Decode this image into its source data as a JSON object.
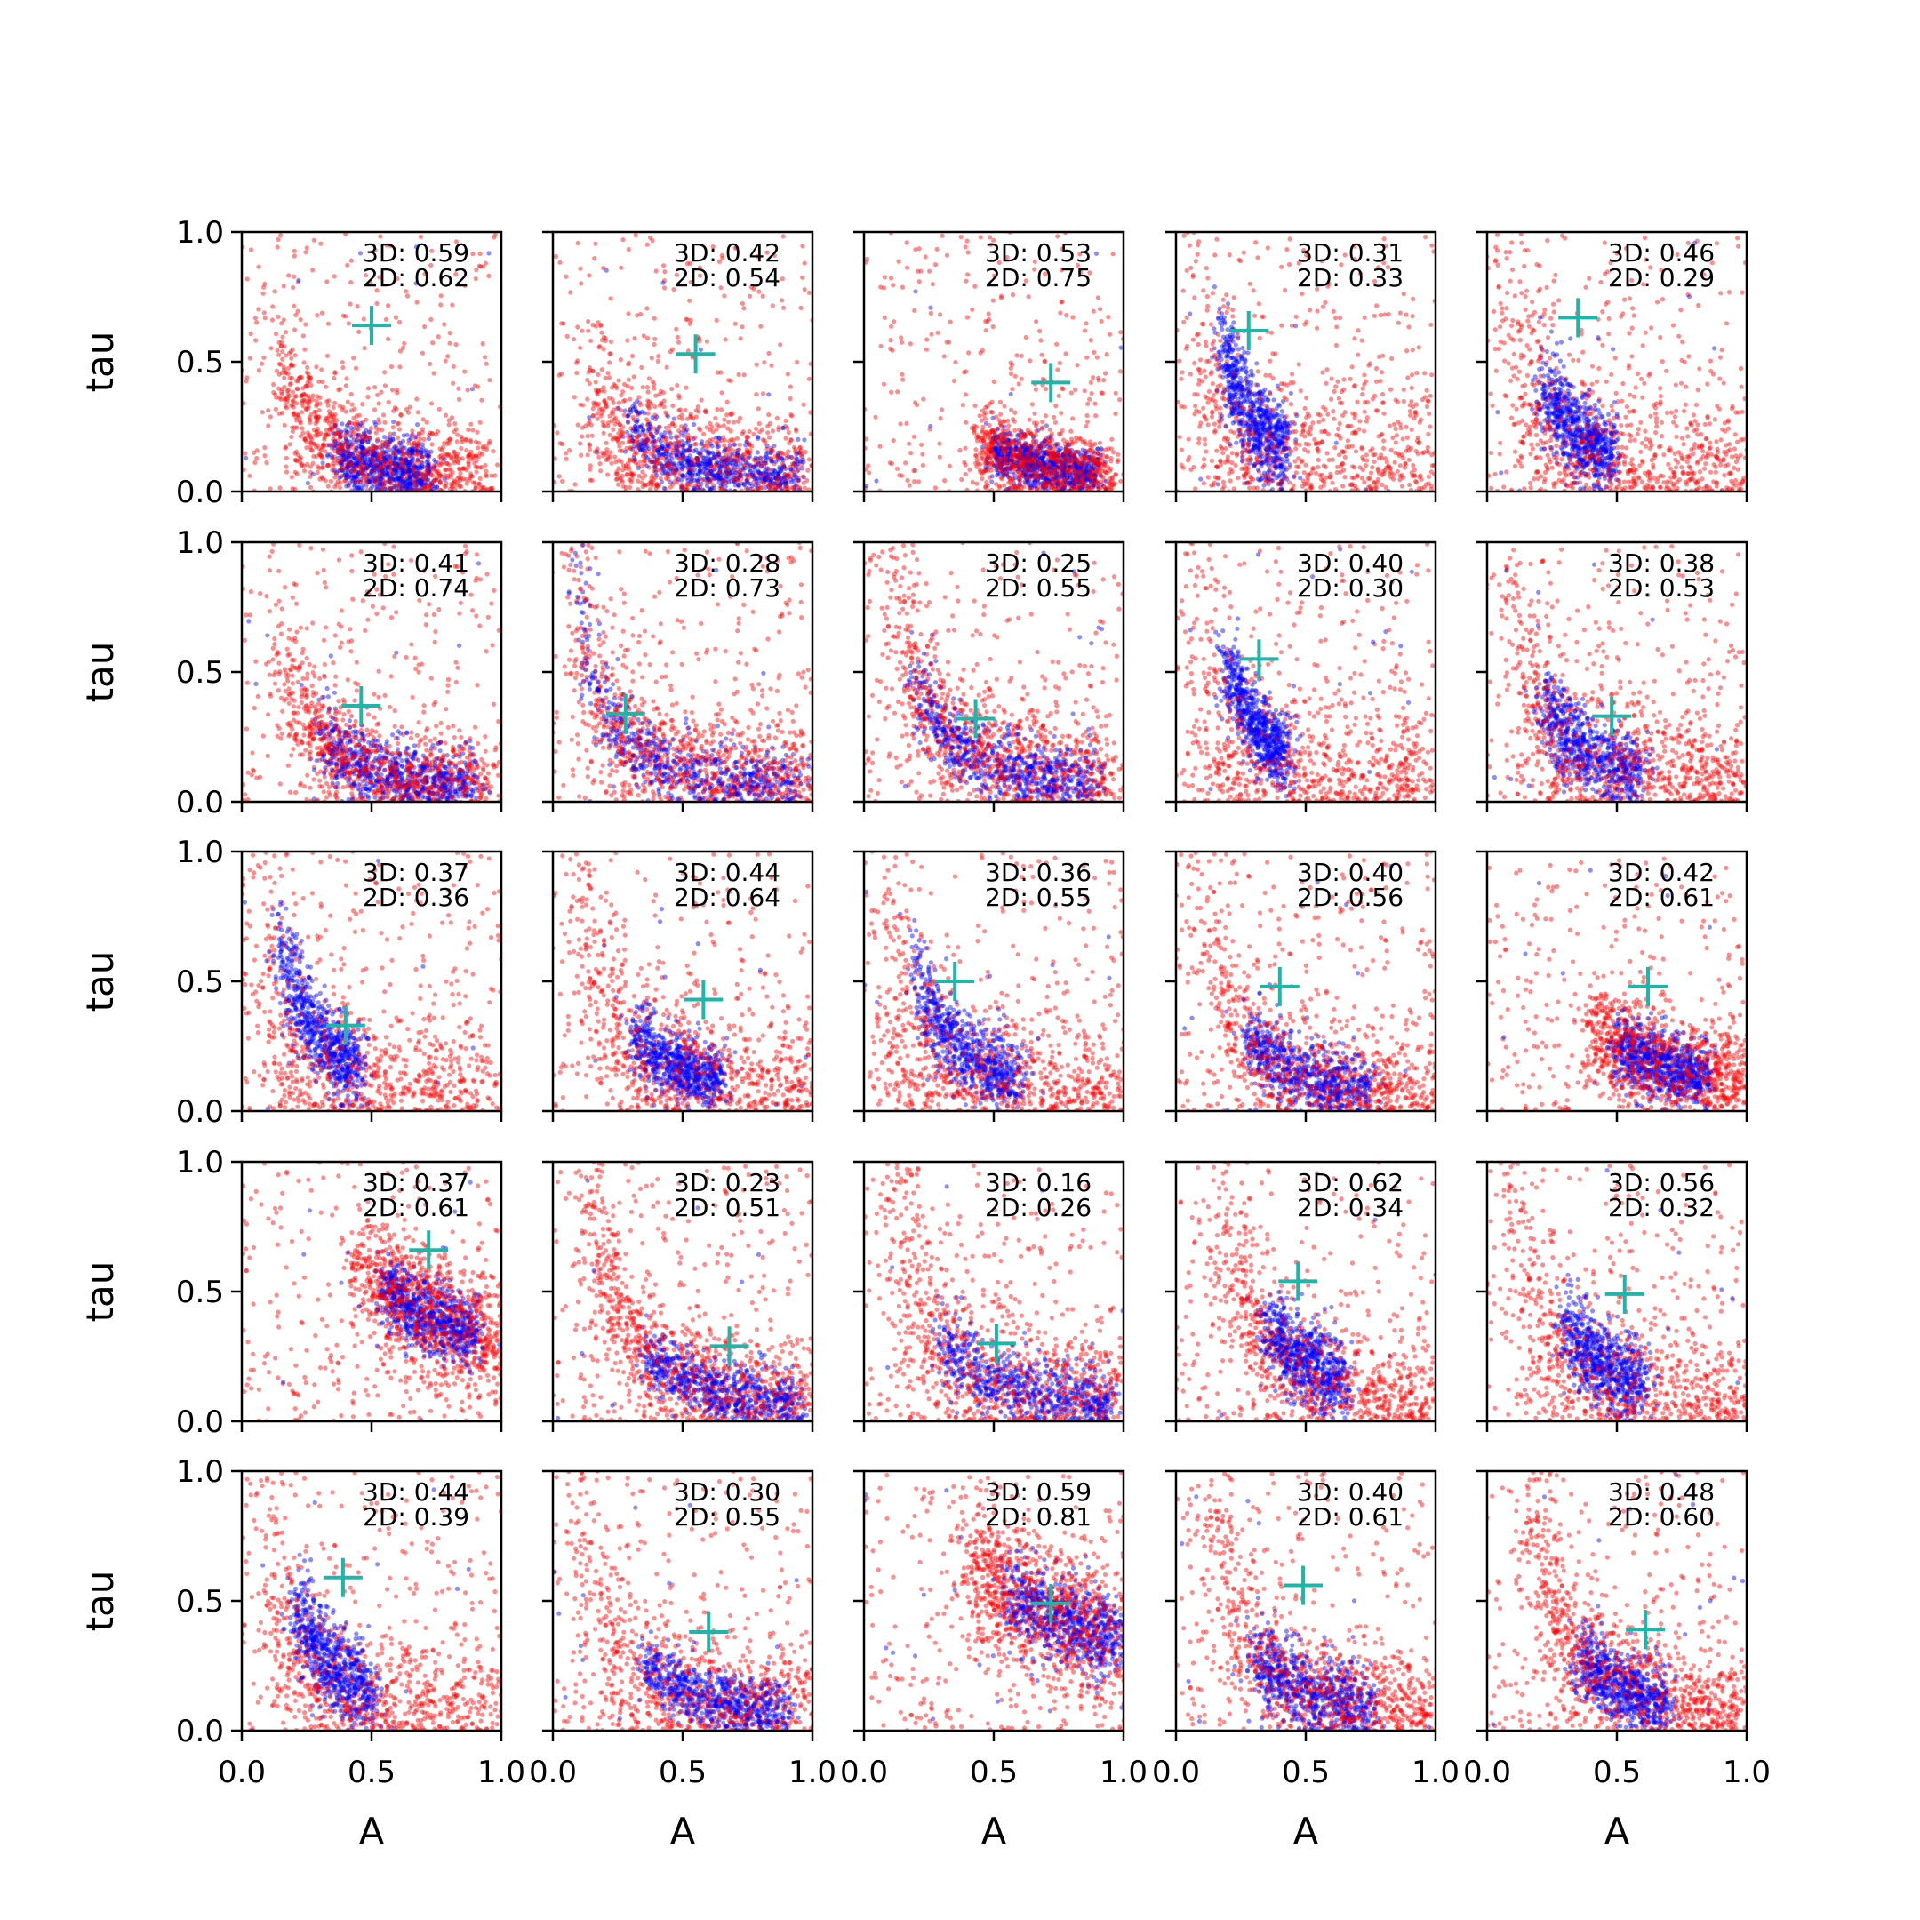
{
  "chart_data": {
    "type": "scatter",
    "rows": 5,
    "cols": 5,
    "xlabel": "A",
    "ylabel": "tau",
    "xlim": [
      0.0,
      1.0
    ],
    "ylim": [
      0.0,
      1.0
    ],
    "xticks": [
      "0.0",
      "0.5",
      "1.0"
    ],
    "yticks": [
      "0.0",
      "0.5",
      "1.0"
    ],
    "grid": false,
    "series_colors": {
      "posterior_2d": "#ff0000",
      "posterior_3d": "#0000ff",
      "truth_marker": "#1fb5a8"
    },
    "panels": [
      {
        "score_3d": "3D: 0.59",
        "score_2d": "2D: 0.62",
        "truth": [
          0.5,
          0.64
        ],
        "red": {
          "a": 0.04,
          "b": 1.4,
          "w": 0.1,
          "x": [
            0.15,
            0.95
          ]
        },
        "blue": {
          "a": 0.04,
          "b": 1.4,
          "w": 0.07,
          "x": [
            0.38,
            0.72
          ]
        }
      },
      {
        "score_3d": "3D: 0.42",
        "score_2d": "2D: 0.54",
        "truth": [
          0.55,
          0.53
        ],
        "red": {
          "a": 0.03,
          "b": 1.45,
          "w": 0.13,
          "x": [
            0.15,
            1.0
          ]
        },
        "blue": {
          "a": 0.045,
          "b": 1.45,
          "w": 0.06,
          "x": [
            0.3,
            0.95
          ]
        }
      },
      {
        "score_3d": "3D: 0.53",
        "score_2d": "2D: 0.75",
        "truth": [
          0.72,
          0.42
        ],
        "red": {
          "a": 0.06,
          "b": 1.4,
          "w": 0.07,
          "x": [
            0.45,
            0.95
          ]
        },
        "blue": {
          "a": 0.06,
          "b": 1.4,
          "w": 0.05,
          "x": [
            0.5,
            0.9
          ]
        }
      },
      {
        "score_3d": "3D: 0.31",
        "score_2d": "2D: 0.33",
        "truth": [
          0.28,
          0.62
        ],
        "red": {
          "a": 0.01,
          "b": 1.8,
          "w": 0.2,
          "x": [
            0.02,
            1.0
          ]
        },
        "blue": {
          "a": 0.04,
          "b": 1.6,
          "w": 0.08,
          "x": [
            0.18,
            0.42
          ]
        }
      },
      {
        "score_3d": "3D: 0.46",
        "score_2d": "2D: 0.29",
        "truth": [
          0.35,
          0.67
        ],
        "red": {
          "a": 0.02,
          "b": 1.6,
          "w": 0.15,
          "x": [
            0.02,
            1.0
          ]
        },
        "blue": {
          "a": 0.05,
          "b": 1.4,
          "w": 0.08,
          "x": [
            0.22,
            0.48
          ]
        }
      },
      {
        "score_3d": "3D: 0.41",
        "score_2d": "2D: 0.74",
        "truth": [
          0.46,
          0.37
        ],
        "red": {
          "a": 0.04,
          "b": 1.5,
          "w": 0.1,
          "x": [
            0.15,
            0.95
          ]
        },
        "blue": {
          "a": 0.05,
          "b": 1.4,
          "w": 0.07,
          "x": [
            0.3,
            0.9
          ]
        }
      },
      {
        "score_3d": "3D: 0.28",
        "score_2d": "2D: 0.73",
        "truth": [
          0.28,
          0.34
        ],
        "red": {
          "a": 0.05,
          "b": 1.2,
          "w": 0.12,
          "x": [
            0.02,
            1.0
          ]
        },
        "blue": {
          "a": 0.05,
          "b": 1.2,
          "w": 0.07,
          "x": [
            0.03,
            0.95
          ]
        }
      },
      {
        "score_3d": "3D: 0.25",
        "score_2d": "2D: 0.55",
        "truth": [
          0.43,
          0.32
        ],
        "red": {
          "a": 0.06,
          "b": 1.3,
          "w": 0.12,
          "x": [
            0.05,
            0.95
          ]
        },
        "blue": {
          "a": 0.06,
          "b": 1.3,
          "w": 0.07,
          "x": [
            0.2,
            0.9
          ]
        }
      },
      {
        "score_3d": "3D: 0.40",
        "score_2d": "2D: 0.30",
        "truth": [
          0.32,
          0.55
        ],
        "red": {
          "a": 0.01,
          "b": 1.8,
          "w": 0.18,
          "x": [
            0.02,
            1.0
          ]
        },
        "blue": {
          "a": 0.05,
          "b": 1.5,
          "w": 0.07,
          "x": [
            0.2,
            0.42
          ]
        }
      },
      {
        "score_3d": "3D: 0.38",
        "score_2d": "2D: 0.53",
        "truth": [
          0.48,
          0.33
        ],
        "red": {
          "a": 0.03,
          "b": 1.5,
          "w": 0.15,
          "x": [
            0.05,
            1.0
          ]
        },
        "blue": {
          "a": 0.05,
          "b": 1.4,
          "w": 0.08,
          "x": [
            0.22,
            0.6
          ]
        }
      },
      {
        "score_3d": "3D: 0.37",
        "score_2d": "2D: 0.36",
        "truth": [
          0.4,
          0.33
        ],
        "red": {
          "a": 0.01,
          "b": 1.8,
          "w": 0.18,
          "x": [
            0.02,
            1.0
          ]
        },
        "blue": {
          "a": 0.06,
          "b": 1.3,
          "w": 0.08,
          "x": [
            0.15,
            0.45
          ]
        }
      },
      {
        "score_3d": "3D: 0.44",
        "score_2d": "2D: 0.64",
        "truth": [
          0.58,
          0.43
        ],
        "red": {
          "a": 0.03,
          "b": 1.6,
          "w": 0.15,
          "x": [
            0.02,
            1.0
          ]
        },
        "blue": {
          "a": 0.06,
          "b": 1.4,
          "w": 0.07,
          "x": [
            0.32,
            0.65
          ]
        }
      },
      {
        "score_3d": "3D: 0.36",
        "score_2d": "2D: 0.55",
        "truth": [
          0.35,
          0.5
        ],
        "red": {
          "a": 0.02,
          "b": 1.6,
          "w": 0.15,
          "x": [
            0.02,
            1.0
          ]
        },
        "blue": {
          "a": 0.06,
          "b": 1.4,
          "w": 0.07,
          "x": [
            0.2,
            0.6
          ]
        }
      },
      {
        "score_3d": "3D: 0.40",
        "score_2d": "2D: 0.56",
        "truth": [
          0.4,
          0.48
        ],
        "red": {
          "a": 0.04,
          "b": 1.4,
          "w": 0.12,
          "x": [
            0.05,
            1.0
          ]
        },
        "blue": {
          "a": 0.05,
          "b": 1.4,
          "w": 0.07,
          "x": [
            0.28,
            0.75
          ]
        }
      },
      {
        "score_3d": "3D: 0.42",
        "score_2d": "2D: 0.61",
        "truth": [
          0.62,
          0.48
        ],
        "red": {
          "a": 0.11,
          "b": 1.2,
          "w": 0.1,
          "x": [
            0.4,
            1.0
          ]
        },
        "blue": {
          "a": 0.11,
          "b": 1.2,
          "w": 0.07,
          "x": [
            0.5,
            0.85
          ]
        }
      },
      {
        "score_3d": "3D: 0.37",
        "score_2d": "2D: 0.61",
        "truth": [
          0.72,
          0.66
        ],
        "red": {
          "a": 0.3,
          "b": 0.9,
          "w": 0.12,
          "x": [
            0.45,
            1.0
          ]
        },
        "blue": {
          "a": 0.3,
          "b": 0.9,
          "w": 0.07,
          "x": [
            0.55,
            0.9
          ]
        }
      },
      {
        "score_3d": "3D: 0.23",
        "score_2d": "2D: 0.51",
        "truth": [
          0.68,
          0.29
        ],
        "red": {
          "a": 0.06,
          "b": 1.4,
          "w": 0.12,
          "x": [
            0.1,
            1.0
          ]
        },
        "blue": {
          "a": 0.06,
          "b": 1.4,
          "w": 0.06,
          "x": [
            0.35,
            0.95
          ]
        }
      },
      {
        "score_3d": "3D: 0.16",
        "score_2d": "2D: 0.26",
        "truth": [
          0.51,
          0.3
        ],
        "red": {
          "a": 0.05,
          "b": 1.4,
          "w": 0.15,
          "x": [
            0.02,
            1.0
          ]
        },
        "blue": {
          "a": 0.06,
          "b": 1.4,
          "w": 0.07,
          "x": [
            0.3,
            0.95
          ]
        }
      },
      {
        "score_3d": "3D: 0.62",
        "score_2d": "2D: 0.34",
        "truth": [
          0.47,
          0.54
        ],
        "red": {
          "a": 0.06,
          "b": 1.5,
          "w": 0.12,
          "x": [
            0.02,
            1.0
          ]
        },
        "blue": {
          "a": 0.08,
          "b": 1.5,
          "w": 0.08,
          "x": [
            0.35,
            0.65
          ]
        }
      },
      {
        "score_3d": "3D: 0.56",
        "score_2d": "2D: 0.32",
        "truth": [
          0.53,
          0.49
        ],
        "red": {
          "a": 0.03,
          "b": 1.6,
          "w": 0.15,
          "x": [
            0.02,
            1.0
          ]
        },
        "blue": {
          "a": 0.07,
          "b": 1.4,
          "w": 0.08,
          "x": [
            0.3,
            0.6
          ]
        }
      },
      {
        "score_3d": "3D: 0.44",
        "score_2d": "2D: 0.39",
        "truth": [
          0.39,
          0.59
        ],
        "red": {
          "a": 0.02,
          "b": 1.7,
          "w": 0.15,
          "x": [
            0.02,
            1.0
          ]
        },
        "blue": {
          "a": 0.05,
          "b": 1.5,
          "w": 0.08,
          "x": [
            0.22,
            0.5
          ]
        }
      },
      {
        "score_3d": "3D: 0.30",
        "score_2d": "2D: 0.55",
        "truth": [
          0.6,
          0.38
        ],
        "red": {
          "a": 0.03,
          "b": 1.6,
          "w": 0.15,
          "x": [
            0.02,
            1.0
          ]
        },
        "blue": {
          "a": 0.06,
          "b": 1.4,
          "w": 0.06,
          "x": [
            0.35,
            0.9
          ]
        }
      },
      {
        "score_3d": "3D: 0.59",
        "score_2d": "2D: 0.81",
        "truth": [
          0.72,
          0.49
        ],
        "red": {
          "a": 0.35,
          "b": 0.7,
          "w": 0.14,
          "x": [
            0.4,
            1.0
          ]
        },
        "blue": {
          "a": 0.35,
          "b": 0.7,
          "w": 0.08,
          "x": [
            0.55,
            1.0
          ]
        }
      },
      {
        "score_3d": "3D: 0.40",
        "score_2d": "2D: 0.61",
        "truth": [
          0.49,
          0.56
        ],
        "red": {
          "a": 0.05,
          "b": 1.5,
          "w": 0.12,
          "x": [
            0.05,
            1.0
          ]
        },
        "blue": {
          "a": 0.05,
          "b": 1.5,
          "w": 0.08,
          "x": [
            0.3,
            0.75
          ]
        }
      },
      {
        "score_3d": "3D: 0.48",
        "score_2d": "2D: 0.60",
        "truth": [
          0.61,
          0.39
        ],
        "red": {
          "a": 0.06,
          "b": 1.5,
          "w": 0.12,
          "x": [
            0.15,
            1.0
          ]
        },
        "blue": {
          "a": 0.06,
          "b": 1.5,
          "w": 0.07,
          "x": [
            0.35,
            0.7
          ]
        }
      }
    ]
  }
}
